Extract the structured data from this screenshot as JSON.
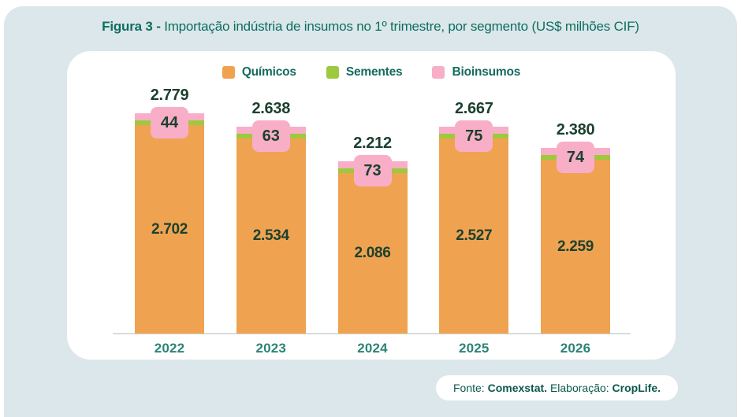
{
  "colors": {
    "page_background": "#ffffff",
    "panel_background": "#dbe7eb",
    "card_background": "#ffffff",
    "title_text": "#0e6e5f",
    "value_text": "#1c402e",
    "axis_label_text": "#2c8476",
    "axis_line": "#d8dcdd",
    "footer_text": "#0b594d",
    "quimicos": "#efa351",
    "sementes": "#9cc93e",
    "bioinsumos": "#f8aec7"
  },
  "title": {
    "prefix": "Figura 3 - ",
    "text": "Importação indústria de insumos no 1º trimestre, por segmento (US$ milhões CIF)"
  },
  "legend": {
    "items": [
      {
        "label": "Químicos",
        "color": "#efa351"
      },
      {
        "label": "Sementes",
        "color": "#9cc93e"
      },
      {
        "label": "Bioinsumos",
        "color": "#f8aec7"
      }
    ]
  },
  "chart_data": {
    "type": "bar",
    "stacked": true,
    "title": "Figura 3 - Importação indústria de insumos no 1º trimestre, por segmento (US$ milhões CIF)",
    "unit": "US$ milhões CIF",
    "legend_position": "top",
    "grid": false,
    "ylim": [
      0,
      2800
    ],
    "categories": [
      "2022",
      "2023",
      "2024",
      "2025",
      "2026"
    ],
    "series": [
      {
        "name": "Químicos",
        "color": "#efa351",
        "values": [
          2702,
          2534,
          2086,
          2527,
          2259
        ],
        "value_labels": [
          "2.702",
          "2.534",
          "2.086",
          "2.527",
          "2.259"
        ]
      },
      {
        "name": "Sementes",
        "color": "#9cc93e",
        "values": [
          33,
          41,
          53,
          65,
          47
        ]
      },
      {
        "name": "Bioinsumos",
        "color": "#f8aec7",
        "values": [
          44,
          63,
          73,
          75,
          74
        ],
        "value_labels": [
          "44",
          "63",
          "73",
          "75",
          "74"
        ]
      }
    ],
    "totals": [
      2779,
      2638,
      2212,
      2667,
      2380
    ],
    "total_labels": [
      "2.779",
      "2.638",
      "2.212",
      "2.667",
      "2.380"
    ]
  },
  "footer": {
    "fonte_label": "Fonte: ",
    "fonte_value": "Comexstat.",
    "separator": " ",
    "elaboracao_label": "Elaboração: ",
    "elaboracao_value": "CropLife."
  }
}
